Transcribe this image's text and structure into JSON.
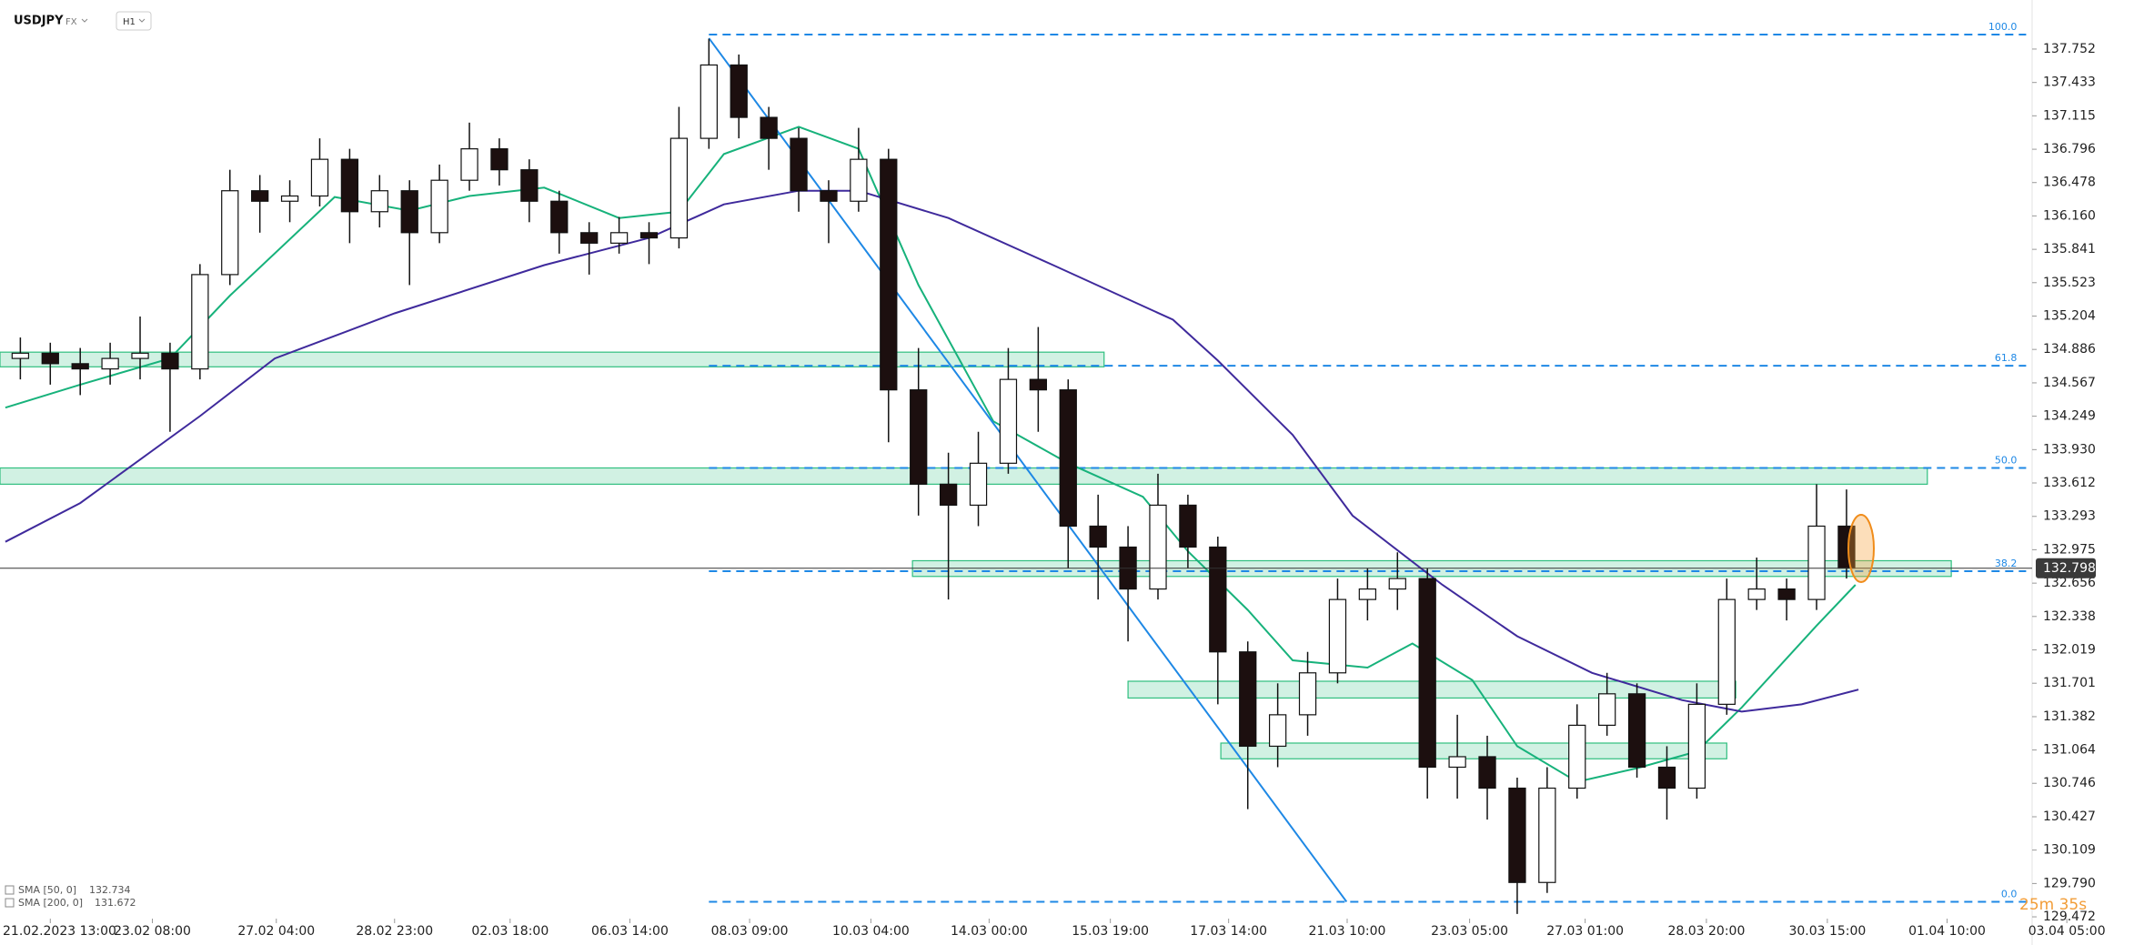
{
  "header": {
    "symbol": "USDJPY",
    "market": "FX",
    "interval": "H1"
  },
  "chart_data": {
    "type": "candlestick",
    "x": [
      -1,
      0,
      1,
      2,
      3,
      4,
      5,
      6,
      7,
      8,
      9,
      10,
      11,
      12,
      13,
      14,
      15,
      16,
      17,
      18,
      19,
      20,
      21,
      22,
      23,
      24,
      25,
      26,
      27,
      28,
      29,
      30,
      31,
      32,
      33,
      34,
      35,
      36,
      37,
      38,
      39,
      40,
      41,
      42,
      43,
      44,
      45,
      46,
      47,
      48,
      49,
      50,
      51,
      52,
      53,
      54,
      55,
      56,
      57,
      58,
      59,
      60
    ],
    "open": [
      134.8,
      134.85,
      134.75,
      134.7,
      134.8,
      134.85,
      134.7,
      135.6,
      136.4,
      136.3,
      136.35,
      136.7,
      136.2,
      136.4,
      136.0,
      136.5,
      136.8,
      136.6,
      136.3,
      136.0,
      135.9,
      136.0,
      135.95,
      136.9,
      137.6,
      137.1,
      136.9,
      136.4,
      136.3,
      136.7,
      134.5,
      133.6,
      133.4,
      133.8,
      134.6,
      134.5,
      133.2,
      133.0,
      132.6,
      133.4,
      133.0,
      132.0,
      131.1,
      131.4,
      131.8,
      132.5,
      132.6,
      132.7,
      130.9,
      131.0,
      130.7,
      129.8,
      130.7,
      131.3,
      131.6,
      130.9,
      130.7,
      131.5,
      132.5,
      132.6,
      132.5,
      133.2
    ],
    "high": [
      135.0,
      134.95,
      134.9,
      134.95,
      135.2,
      134.95,
      135.7,
      136.6,
      136.55,
      136.5,
      136.9,
      136.8,
      136.55,
      136.5,
      136.65,
      137.05,
      136.9,
      136.7,
      136.4,
      136.1,
      136.15,
      136.1,
      137.2,
      137.85,
      137.7,
      137.2,
      137.0,
      136.5,
      137.0,
      136.8,
      134.9,
      133.9,
      134.1,
      134.9,
      135.1,
      134.6,
      133.5,
      133.2,
      133.7,
      133.5,
      133.1,
      132.1,
      131.7,
      132.0,
      132.7,
      132.8,
      132.95,
      132.8,
      131.4,
      131.2,
      130.8,
      130.9,
      131.5,
      131.8,
      131.7,
      131.1,
      131.7,
      132.7,
      132.9,
      132.7,
      133.6,
      133.55
    ],
    "low": [
      134.6,
      134.55,
      134.45,
      134.55,
      134.6,
      134.1,
      134.6,
      135.5,
      136.0,
      136.1,
      136.25,
      135.9,
      136.05,
      135.5,
      135.9,
      136.4,
      136.45,
      136.1,
      135.8,
      135.6,
      135.8,
      135.7,
      135.85,
      136.8,
      136.9,
      136.6,
      136.2,
      135.9,
      136.2,
      134.0,
      133.3,
      132.5,
      133.2,
      133.7,
      134.1,
      132.8,
      132.5,
      132.1,
      132.5,
      132.8,
      131.5,
      130.5,
      130.9,
      131.2,
      131.7,
      132.3,
      132.4,
      130.6,
      130.6,
      130.4,
      129.5,
      129.7,
      130.6,
      131.2,
      130.8,
      130.4,
      130.6,
      131.4,
      132.4,
      132.3,
      132.4,
      132.7
    ],
    "close": [
      134.85,
      134.75,
      134.7,
      134.8,
      134.85,
      134.7,
      135.6,
      136.4,
      136.3,
      136.35,
      136.7,
      136.2,
      136.4,
      136.0,
      136.5,
      136.8,
      136.6,
      136.3,
      136.0,
      135.9,
      136.0,
      135.95,
      136.9,
      137.6,
      137.1,
      136.9,
      136.4,
      136.3,
      136.7,
      134.5,
      133.6,
      133.4,
      133.8,
      134.6,
      134.5,
      133.2,
      133.0,
      132.6,
      133.4,
      133.0,
      132.0,
      131.1,
      131.4,
      131.8,
      132.5,
      132.6,
      132.7,
      130.9,
      131.0,
      130.7,
      129.8,
      130.7,
      131.3,
      131.6,
      130.9,
      130.7,
      131.5,
      132.5,
      132.6,
      132.5,
      133.2,
      132.8
    ],
    "up_color": "#ffffff",
    "down_color": "#1c0f0f",
    "xlim": [
      -1.68,
      66.2
    ],
    "xticks": [
      {
        "value": 0,
        "label": "21.02.2023 13:00"
      },
      {
        "value": 3.41,
        "label": "23.02 08:00"
      },
      {
        "value": 7.55,
        "label": "27.02 04:00"
      },
      {
        "value": 11.5,
        "label": "28.02 23:00"
      },
      {
        "value": 15.36,
        "label": "02.03 18:00"
      },
      {
        "value": 19.36,
        "label": "06.03 14:00"
      },
      {
        "value": 23.36,
        "label": "08.03 09:00"
      },
      {
        "value": 27.41,
        "label": "10.03 04:00"
      },
      {
        "value": 31.36,
        "label": "14.03 00:00"
      },
      {
        "value": 35.41,
        "label": "15.03 19:00"
      },
      {
        "value": 39.36,
        "label": "17.03 14:00"
      },
      {
        "value": 43.32,
        "label": "21.03 10:00"
      },
      {
        "value": 47.41,
        "label": "23.03 05:00"
      },
      {
        "value": 51.27,
        "label": "27.03 01:00"
      },
      {
        "value": 55.32,
        "label": "28.03 20:00"
      },
      {
        "value": 59.36,
        "label": "30.03 15:00"
      },
      {
        "value": 63.36,
        "label": "01.04 10:00"
      },
      {
        "value": 67.36,
        "label": "03.04 05:00"
      }
    ],
    "ylim": [
      129.455,
      138.22
    ],
    "yticks": [
      137.752,
      137.433,
      137.115,
      136.796,
      136.478,
      {
        "value": 136.16,
        "label": "136.160"
      },
      135.841,
      135.523,
      135.204,
      134.886,
      134.567,
      134.249,
      {
        "value": 133.93,
        "label": "133.930"
      },
      133.612,
      133.293,
      132.975,
      132.656,
      132.338,
      132.019,
      131.701,
      131.382,
      131.064,
      130.746,
      130.427,
      130.109,
      {
        "value": 129.79,
        "label": "129.790"
      },
      129.472
    ],
    "series": [
      {
        "name": "SMA [50, 0]",
        "legend_value": 132.734,
        "color": "#17b27b",
        "x": [
          -1.5,
          1,
          4,
          6,
          9.5,
          12,
          14,
          16.5,
          19,
          21,
          22.5,
          25,
          27,
          29,
          31.5,
          34,
          36.5,
          38,
          40,
          41.5,
          44,
          45.5,
          47.5,
          49,
          51,
          53,
          55,
          56.5,
          59,
          60.3
        ],
        "values": [
          134.33,
          134.55,
          134.8,
          135.4,
          136.34,
          136.21,
          136.35,
          136.43,
          136.14,
          136.2,
          136.75,
          137.01,
          136.8,
          135.5,
          134.2,
          133.8,
          133.48,
          132.96,
          132.4,
          131.92,
          131.85,
          132.08,
          131.73,
          131.1,
          130.76,
          130.89,
          131.05,
          131.47,
          132.25,
          132.64
        ]
      },
      {
        "name": "SMA [200, 0]",
        "legend_value": 131.672,
        "color": "#3f2a9c",
        "x": [
          -1.5,
          1,
          5,
          7.5,
          11.5,
          16.5,
          20,
          22.5,
          25,
          27,
          30,
          33.5,
          37.5,
          39,
          41.5,
          43.5,
          46.5,
          49,
          51.5,
          54.5,
          56.5,
          58.5,
          60.4
        ],
        "values": [
          133.05,
          133.42,
          134.25,
          134.8,
          135.23,
          135.69,
          135.95,
          136.27,
          136.4,
          136.4,
          136.14,
          135.69,
          135.17,
          134.78,
          134.07,
          133.3,
          132.64,
          132.15,
          131.8,
          131.54,
          131.43,
          131.5,
          131.64
        ]
      }
    ],
    "fibonacci": {
      "color": "#1e88e5",
      "x_start": 22.0,
      "x_end": 66.0,
      "levels": [
        {
          "label": "100.0",
          "value": 137.89
        },
        {
          "label": "61.8",
          "value": 134.73
        },
        {
          "label": "50.0",
          "value": 133.755
        },
        {
          "label": "38.2",
          "value": 132.77
        },
        {
          "label": "0.0",
          "value": 129.616
        }
      ]
    },
    "zones": [
      {
        "x": [
          -1.68,
          35.2
        ],
        "range": [
          134.72,
          134.86
        ]
      },
      {
        "x": [
          -1.68,
          62.7
        ],
        "range": [
          133.6,
          133.755
        ]
      },
      {
        "x": [
          28.8,
          63.5
        ],
        "range": [
          132.72,
          132.87
        ]
      },
      {
        "x": [
          36.0,
          56.3
        ],
        "range": [
          131.56,
          131.72
        ]
      },
      {
        "x": [
          39.1,
          56.0
        ],
        "range": [
          130.98,
          131.13
        ]
      }
    ],
    "zone_color": "#2fbf7f",
    "trendline": {
      "x": [
        22.0,
        43.3
      ],
      "values": [
        137.856,
        129.616
      ],
      "color": "#1e88e5"
    },
    "current_price": 132.798,
    "countdown": "25m 35s"
  }
}
